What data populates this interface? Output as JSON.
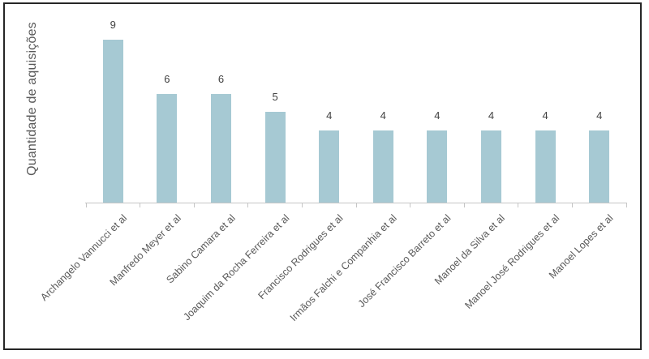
{
  "chart_data": {
    "type": "bar",
    "title": "",
    "categories": [
      "Archangelo Vannucci et al",
      "Manfredo Meyer et al",
      "Sabino Camara et al",
      "Joaquim da Rocha Ferreira et al",
      "Francisco Rodrigues et al",
      "Irmãos Falchi e Companhia et al",
      "José Francisco Barreto et al",
      "Manoel da Silva et al",
      "Manoel José Rodrigues et al",
      "Manoel Lopes et al"
    ],
    "values": [
      9,
      6,
      6,
      5,
      4,
      4,
      4,
      4,
      4,
      4
    ],
    "xlabel": "",
    "ylabel": "Quantidade de aquisições",
    "ylim": [
      0,
      9.5
    ],
    "grid": false,
    "legend": false,
    "data_labels": true,
    "colors": {
      "bar": "#a6c9d3",
      "axis": "#c6c6c6",
      "value_label": "#404040",
      "category_label": "#595959",
      "ylabel_text": "#595959",
      "frame_border": "#262626",
      "background": "#ffffff"
    }
  }
}
